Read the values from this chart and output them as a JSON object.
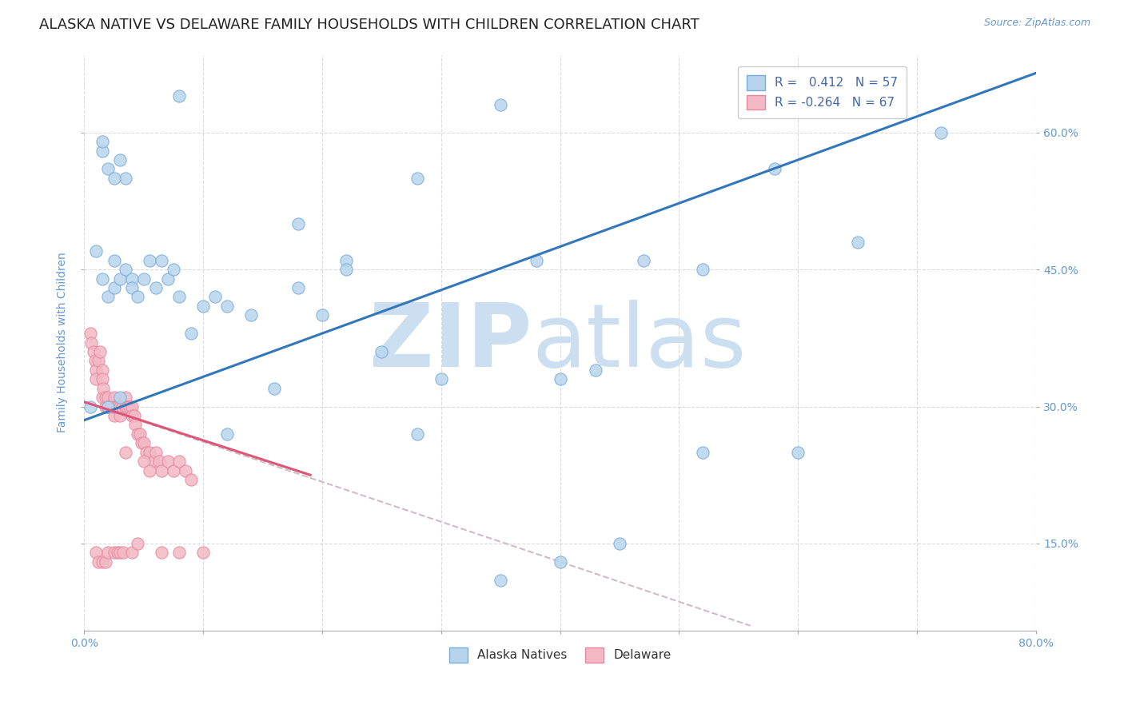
{
  "title": "ALASKA NATIVE VS DELAWARE FAMILY HOUSEHOLDS WITH CHILDREN CORRELATION CHART",
  "source": "Source: ZipAtlas.com",
  "ylabel": "Family Households with Children",
  "legend_entries": [
    {
      "label": "Alaska Natives",
      "color": "#7aacda",
      "fill": "#b8d5ed",
      "R": "0.412",
      "N": "57"
    },
    {
      "label": "Delaware",
      "color": "#e888a0",
      "fill": "#f2b8c4",
      "R": "-0.264",
      "N": "67"
    }
  ],
  "watermark_color": "#ccdff0",
  "trendline_blue_color": "#3377bb",
  "trendline_pink_color": "#dd5577",
  "trendline_dashed_color": "#d0bbc8",
  "background_color": "#ffffff",
  "title_color": "#222222",
  "axis_color": "#6699cc",
  "axis_label_color": "#6699cc",
  "legend_text_color": "#4466aa",
  "xlim": [
    0.0,
    0.8
  ],
  "ylim": [
    0.055,
    0.685
  ],
  "blue_scatter_x": [
    0.005,
    0.01,
    0.015,
    0.015,
    0.02,
    0.02,
    0.02,
    0.025,
    0.025,
    0.03,
    0.03,
    0.035,
    0.035,
    0.04,
    0.04,
    0.045,
    0.05,
    0.055,
    0.06,
    0.065,
    0.07,
    0.075,
    0.08,
    0.09,
    0.1,
    0.11,
    0.12,
    0.14,
    0.16,
    0.18,
    0.2,
    0.22,
    0.25,
    0.28,
    0.3,
    0.35,
    0.38,
    0.4,
    0.43,
    0.47,
    0.52,
    0.58,
    0.65,
    0.72,
    0.025,
    0.03,
    0.015,
    0.08,
    0.12,
    0.18,
    0.22,
    0.28,
    0.35,
    0.4,
    0.45,
    0.52,
    0.6
  ],
  "blue_scatter_y": [
    0.3,
    0.47,
    0.44,
    0.58,
    0.42,
    0.3,
    0.56,
    0.43,
    0.46,
    0.44,
    0.31,
    0.55,
    0.45,
    0.44,
    0.43,
    0.42,
    0.44,
    0.46,
    0.43,
    0.46,
    0.44,
    0.45,
    0.42,
    0.38,
    0.41,
    0.42,
    0.41,
    0.4,
    0.32,
    0.43,
    0.4,
    0.46,
    0.36,
    0.55,
    0.33,
    0.63,
    0.46,
    0.33,
    0.34,
    0.46,
    0.45,
    0.56,
    0.48,
    0.6,
    0.55,
    0.57,
    0.59,
    0.64,
    0.27,
    0.5,
    0.45,
    0.27,
    0.11,
    0.13,
    0.15,
    0.25,
    0.25
  ],
  "pink_scatter_x": [
    0.005,
    0.006,
    0.008,
    0.009,
    0.01,
    0.01,
    0.012,
    0.013,
    0.015,
    0.015,
    0.015,
    0.016,
    0.018,
    0.018,
    0.02,
    0.02,
    0.02,
    0.022,
    0.023,
    0.025,
    0.025,
    0.025,
    0.027,
    0.028,
    0.03,
    0.03,
    0.032,
    0.035,
    0.035,
    0.036,
    0.038,
    0.04,
    0.04,
    0.042,
    0.043,
    0.045,
    0.047,
    0.048,
    0.05,
    0.052,
    0.055,
    0.058,
    0.06,
    0.063,
    0.065,
    0.07,
    0.075,
    0.08,
    0.085,
    0.09,
    0.01,
    0.012,
    0.015,
    0.018,
    0.02,
    0.025,
    0.028,
    0.03,
    0.033,
    0.035,
    0.04,
    0.045,
    0.05,
    0.055,
    0.065,
    0.08,
    0.1
  ],
  "pink_scatter_y": [
    0.38,
    0.37,
    0.36,
    0.35,
    0.34,
    0.33,
    0.35,
    0.36,
    0.34,
    0.33,
    0.31,
    0.32,
    0.31,
    0.3,
    0.3,
    0.31,
    0.3,
    0.3,
    0.3,
    0.29,
    0.31,
    0.3,
    0.3,
    0.3,
    0.29,
    0.3,
    0.3,
    0.31,
    0.3,
    0.3,
    0.3,
    0.3,
    0.29,
    0.29,
    0.28,
    0.27,
    0.27,
    0.26,
    0.26,
    0.25,
    0.25,
    0.24,
    0.25,
    0.24,
    0.23,
    0.24,
    0.23,
    0.24,
    0.23,
    0.22,
    0.14,
    0.13,
    0.13,
    0.13,
    0.14,
    0.14,
    0.14,
    0.14,
    0.14,
    0.25,
    0.14,
    0.15,
    0.24,
    0.23,
    0.14,
    0.14,
    0.14
  ],
  "blue_trend_x": [
    0.0,
    0.8
  ],
  "blue_trend_y": [
    0.285,
    0.665
  ],
  "pink_trend_x": [
    0.0,
    0.19
  ],
  "pink_trend_y": [
    0.305,
    0.225
  ],
  "dashed_trend_x": [
    0.0,
    0.56
  ],
  "dashed_trend_y": [
    0.305,
    0.06
  ],
  "xtick_positions": [
    0.0,
    0.1,
    0.2,
    0.3,
    0.4,
    0.5,
    0.6,
    0.7,
    0.8
  ],
  "ytick_positions": [
    0.15,
    0.3,
    0.45,
    0.6
  ],
  "ytick_labels": [
    "15.0%",
    "30.0%",
    "45.0%",
    "60.0%"
  ],
  "grid_color": "#cccccc",
  "grid_style": "--",
  "title_fontsize": 13,
  "axis_fontsize": 10,
  "tick_fontsize": 10,
  "legend_fontsize": 11
}
